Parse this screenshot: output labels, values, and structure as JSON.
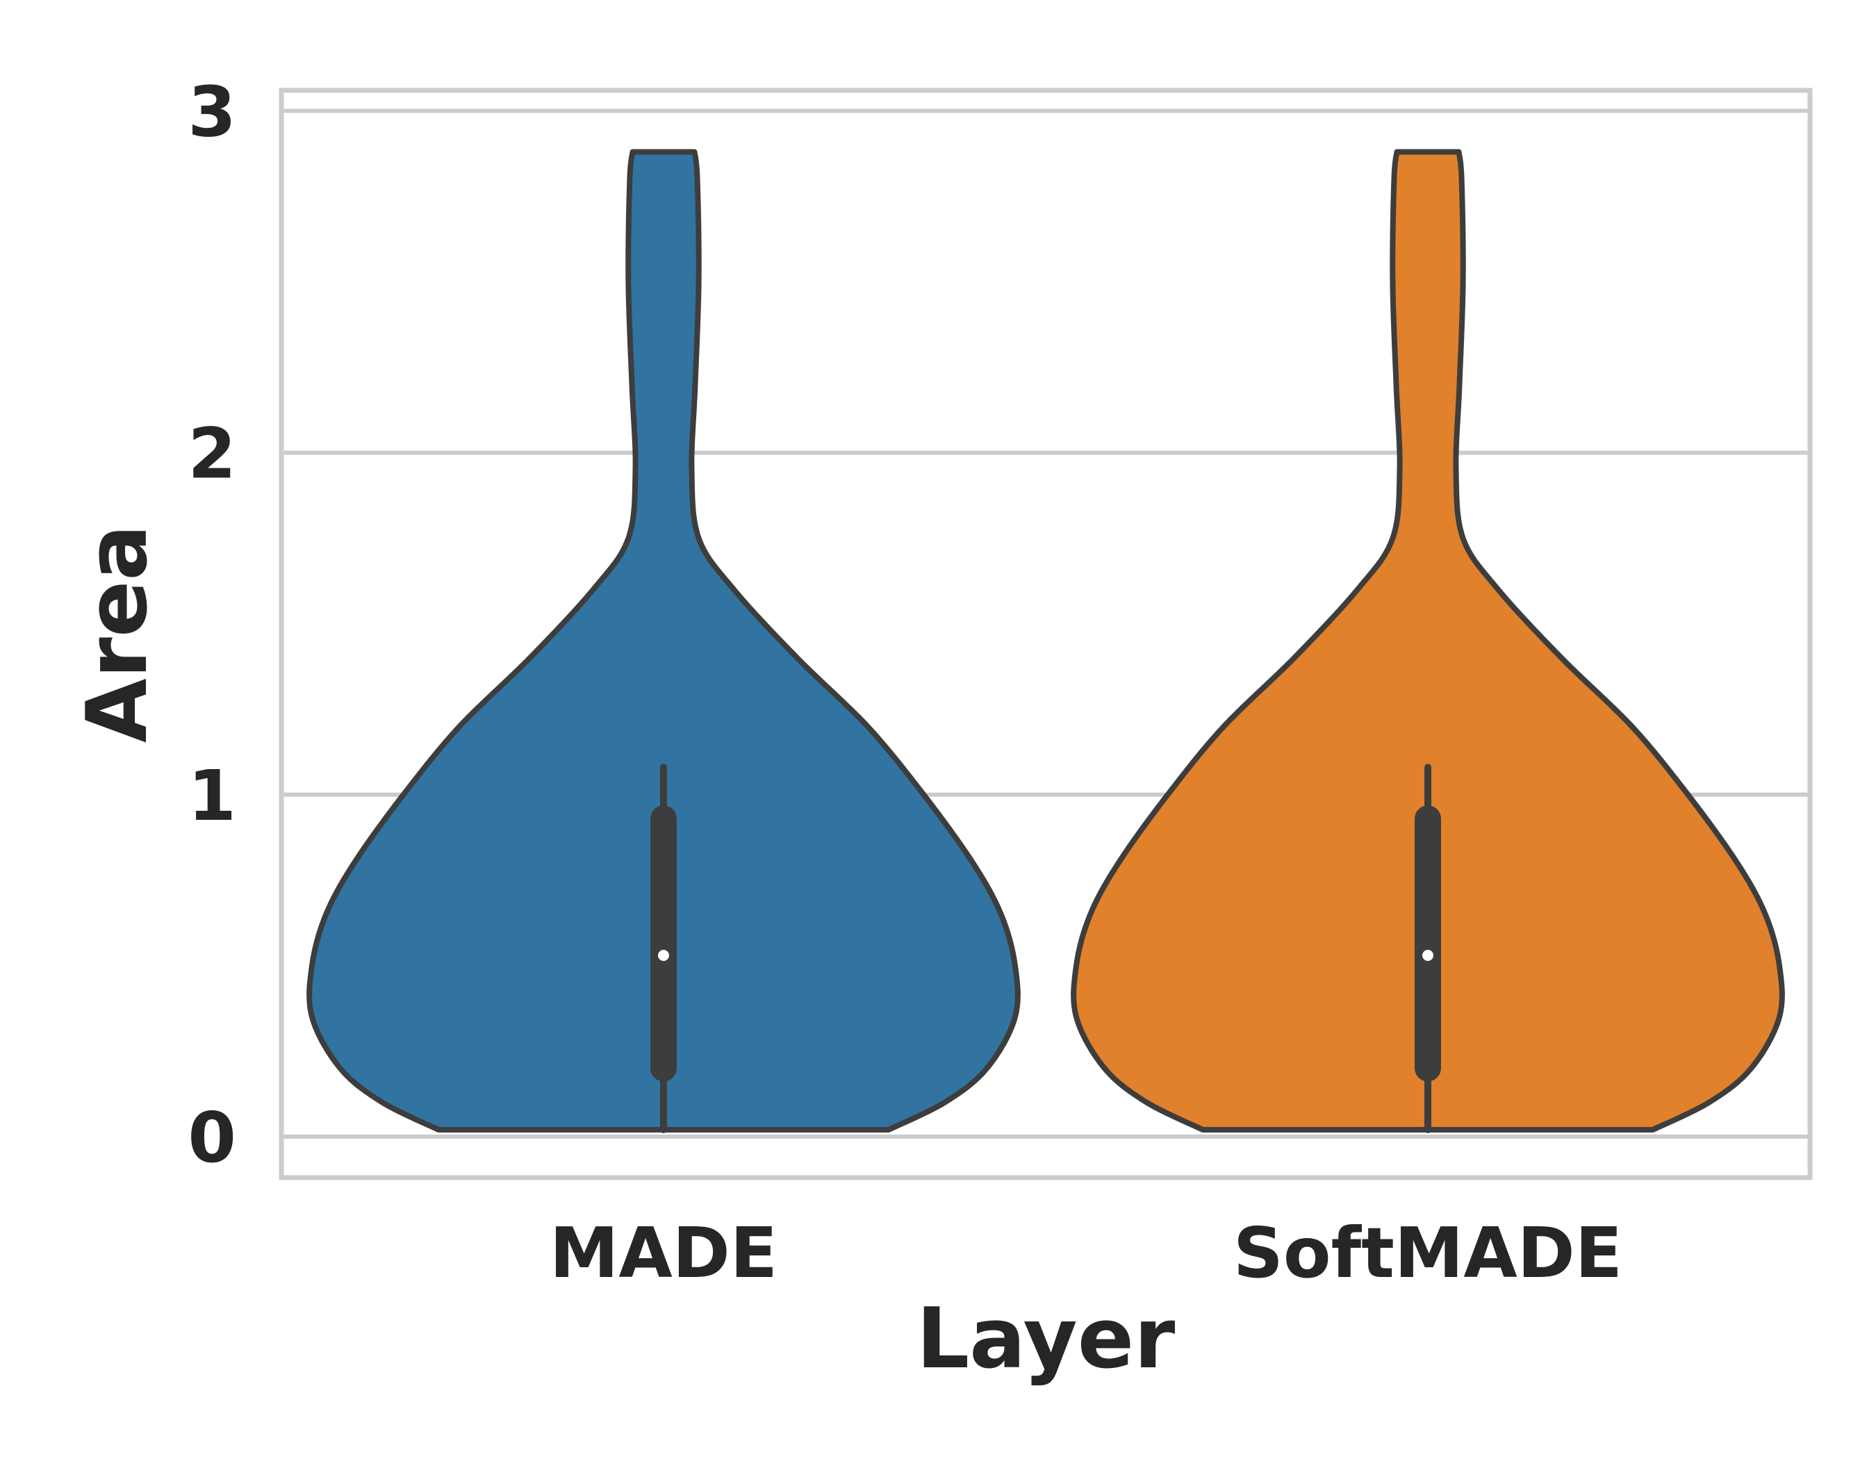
{
  "chart_data": {
    "type": "violin",
    "xlabel": "Layer",
    "ylabel": "Area",
    "categories": [
      "MADE",
      "SoftMADE"
    ],
    "ylim": [
      -0.12,
      3.06
    ],
    "yticks": [
      0,
      1,
      2,
      3
    ],
    "grid": true,
    "violins": [
      {
        "category": "MADE",
        "color": "#3274a1",
        "min": 0.02,
        "q1": 0.2,
        "median": 0.53,
        "q3": 0.93,
        "max": 1.08,
        "whisker_high": 1.08,
        "extent_top": 2.88,
        "density_profile": [
          [
            0.02,
            0.32
          ],
          [
            0.1,
            0.4
          ],
          [
            0.2,
            0.46
          ],
          [
            0.35,
            0.5
          ],
          [
            0.5,
            0.5
          ],
          [
            0.65,
            0.48
          ],
          [
            0.8,
            0.44
          ],
          [
            1.0,
            0.37
          ],
          [
            1.2,
            0.29
          ],
          [
            1.4,
            0.19
          ],
          [
            1.6,
            0.1
          ],
          [
            1.75,
            0.05
          ],
          [
            1.95,
            0.04
          ],
          [
            2.2,
            0.045
          ],
          [
            2.5,
            0.05
          ],
          [
            2.8,
            0.048
          ],
          [
            2.88,
            0.044
          ]
        ]
      },
      {
        "category": "SoftMADE",
        "color": "#e1812c",
        "min": 0.02,
        "q1": 0.2,
        "median": 0.53,
        "q3": 0.93,
        "max": 1.08,
        "whisker_high": 1.08,
        "extent_top": 2.88,
        "density_profile": [
          [
            0.02,
            0.32
          ],
          [
            0.1,
            0.4
          ],
          [
            0.2,
            0.46
          ],
          [
            0.35,
            0.5
          ],
          [
            0.5,
            0.5
          ],
          [
            0.65,
            0.48
          ],
          [
            0.8,
            0.44
          ],
          [
            1.0,
            0.37
          ],
          [
            1.2,
            0.29
          ],
          [
            1.4,
            0.19
          ],
          [
            1.6,
            0.1
          ],
          [
            1.75,
            0.05
          ],
          [
            1.95,
            0.04
          ],
          [
            2.2,
            0.045
          ],
          [
            2.5,
            0.05
          ],
          [
            2.8,
            0.048
          ],
          [
            2.88,
            0.044
          ]
        ]
      }
    ]
  }
}
